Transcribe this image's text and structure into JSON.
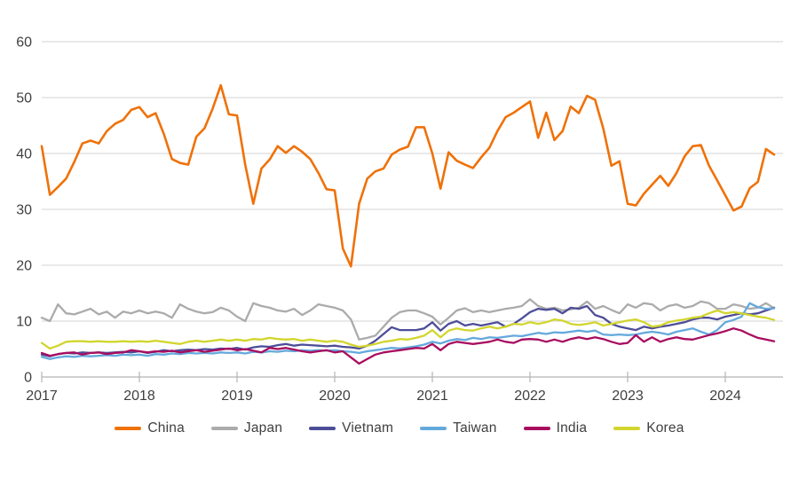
{
  "chart_data": {
    "type": "line",
    "title": "",
    "xlabel": "",
    "ylabel": "",
    "x_unit": "month",
    "x_start": "2017-01",
    "x_end": "2024-07",
    "x_tick_labels": [
      "2017",
      "2018",
      "2019",
      "2020",
      "2021",
      "2022",
      "2023",
      "2024"
    ],
    "y_ticks": [
      0,
      10,
      20,
      30,
      40,
      50,
      60
    ],
    "ylim": [
      0,
      60
    ],
    "grid": "horizontal-only",
    "legend_position": "bottom-center",
    "colors": {
      "grid_line": "#dcdcdc",
      "axis_line": "#b3b3b3",
      "tick_mark": "#b3b3b3",
      "label_text": "#3f3f3f"
    },
    "series": [
      {
        "name": "China",
        "color": "#ef7109",
        "values": [
          41.3,
          32.6,
          34.0,
          35.5,
          38.5,
          41.8,
          42.3,
          41.8,
          44.0,
          45.3,
          46.0,
          47.8,
          48.3,
          46.5,
          47.2,
          43.5,
          39.0,
          38.3,
          38.0,
          43.0,
          44.5,
          48.0,
          52.2,
          47.0,
          46.8,
          38.0,
          31.0,
          37.3,
          38.9,
          41.3,
          40.1,
          41.3,
          40.3,
          39.0,
          36.5,
          33.6,
          33.4,
          23.0,
          19.8,
          31.0,
          35.5,
          36.8,
          37.3,
          39.8,
          40.7,
          41.2,
          44.7,
          44.7,
          40.0,
          33.7,
          40.2,
          38.7,
          38.0,
          37.4,
          39.3,
          41.0,
          44.0,
          46.5,
          47.3,
          48.3,
          49.3,
          42.8,
          47.3,
          42.4,
          44.0,
          48.4,
          47.2,
          50.3,
          49.6,
          44.5,
          37.8,
          38.6,
          31.0,
          30.7,
          32.8,
          34.4,
          36.0,
          34.2,
          36.5,
          39.5,
          41.3,
          41.5,
          37.8,
          35.2,
          32.5,
          29.8,
          30.5,
          33.8,
          34.9,
          40.8,
          39.8
        ]
      },
      {
        "name": "Japan",
        "color": "#ababab",
        "values": [
          10.6,
          10.0,
          13.0,
          11.4,
          11.2,
          11.7,
          12.2,
          11.2,
          11.7,
          10.6,
          11.7,
          11.4,
          11.9,
          11.4,
          11.7,
          11.4,
          10.6,
          13.0,
          12.2,
          11.7,
          11.4,
          11.6,
          12.4,
          11.9,
          10.8,
          10.0,
          13.2,
          12.7,
          12.4,
          11.9,
          11.7,
          12.2,
          11.1,
          11.9,
          13.0,
          12.7,
          12.4,
          11.9,
          10.3,
          6.7,
          7.0,
          7.4,
          9.0,
          10.6,
          11.6,
          11.9,
          11.9,
          11.4,
          10.8,
          9.4,
          10.6,
          11.9,
          12.3,
          11.6,
          11.9,
          11.6,
          11.9,
          12.2,
          12.4,
          12.7,
          13.9,
          12.7,
          12.2,
          12.4,
          11.9,
          12.1,
          12.4,
          13.5,
          12.2,
          12.7,
          12.0,
          11.4,
          13.0,
          12.4,
          13.2,
          13.0,
          11.9,
          12.7,
          13.0,
          12.4,
          12.7,
          13.5,
          13.2,
          12.2,
          12.2,
          13.0,
          12.7,
          12.2,
          12.4,
          13.2,
          12.3
        ]
      },
      {
        "name": "Vietnam",
        "color": "#4d4d99",
        "values": [
          4.0,
          3.7,
          4.1,
          4.3,
          4.2,
          4.4,
          4.3,
          4.4,
          4.3,
          4.4,
          4.5,
          4.4,
          4.6,
          4.3,
          4.5,
          4.8,
          4.6,
          4.8,
          4.9,
          4.8,
          5.0,
          4.9,
          5.1,
          5.0,
          5.2,
          4.9,
          5.3,
          5.5,
          5.4,
          5.7,
          5.9,
          5.6,
          5.8,
          5.7,
          5.6,
          5.5,
          5.6,
          5.4,
          5.3,
          5.1,
          5.6,
          6.5,
          7.7,
          8.9,
          8.4,
          8.4,
          8.4,
          8.7,
          9.8,
          8.3,
          9.5,
          10.0,
          9.2,
          9.5,
          9.2,
          9.5,
          9.8,
          9.0,
          9.5,
          10.5,
          11.6,
          12.2,
          12.0,
          12.2,
          11.4,
          12.4,
          12.2,
          12.7,
          11.1,
          10.6,
          9.5,
          9.0,
          8.7,
          8.4,
          9.0,
          8.7,
          9.0,
          9.2,
          9.5,
          9.8,
          10.3,
          10.6,
          10.6,
          10.3,
          10.8,
          11.1,
          11.4,
          11.2,
          11.4,
          11.9,
          12.4
        ]
      },
      {
        "name": "Taiwan",
        "color": "#64a9dc",
        "values": [
          3.6,
          3.2,
          3.5,
          3.7,
          3.6,
          3.8,
          3.7,
          3.8,
          3.9,
          3.8,
          4.0,
          3.9,
          4.0,
          3.8,
          4.1,
          4.0,
          4.2,
          4.1,
          4.3,
          4.2,
          4.3,
          4.2,
          4.4,
          4.3,
          4.4,
          4.2,
          4.5,
          4.4,
          4.6,
          4.5,
          4.7,
          4.6,
          4.8,
          4.7,
          4.8,
          4.7,
          4.8,
          4.6,
          4.5,
          4.3,
          4.6,
          4.8,
          5.0,
          5.2,
          5.1,
          5.3,
          5.5,
          5.8,
          6.3,
          6.0,
          6.5,
          6.8,
          6.6,
          7.0,
          6.8,
          7.1,
          7.0,
          7.2,
          7.4,
          7.3,
          7.6,
          7.9,
          7.7,
          8.0,
          7.9,
          8.1,
          8.3,
          8.1,
          8.3,
          7.6,
          7.5,
          7.6,
          7.5,
          7.6,
          7.9,
          8.1,
          7.9,
          7.6,
          8.1,
          8.4,
          8.7,
          8.1,
          7.6,
          8.4,
          9.8,
          10.2,
          10.8,
          13.2,
          12.5,
          12.2,
          12.3
        ]
      },
      {
        "name": "India",
        "color": "#a80c5f",
        "values": [
          4.3,
          3.8,
          4.1,
          4.3,
          4.4,
          4.0,
          4.3,
          4.4,
          4.1,
          4.3,
          4.4,
          4.8,
          4.6,
          4.4,
          4.6,
          4.5,
          4.7,
          4.4,
          4.6,
          4.8,
          4.5,
          4.7,
          4.9,
          5.1,
          4.8,
          5.0,
          4.7,
          4.4,
          5.2,
          5.0,
          5.2,
          4.9,
          4.6,
          4.4,
          4.6,
          4.8,
          4.4,
          4.6,
          3.5,
          2.4,
          3.2,
          4.0,
          4.4,
          4.6,
          4.8,
          5.0,
          5.2,
          5.1,
          5.9,
          4.8,
          5.9,
          6.3,
          6.1,
          5.9,
          6.1,
          6.3,
          6.7,
          6.3,
          6.1,
          6.7,
          6.8,
          6.7,
          6.3,
          6.7,
          6.3,
          6.8,
          7.1,
          6.8,
          7.1,
          6.8,
          6.3,
          5.9,
          6.1,
          7.5,
          6.3,
          7.1,
          6.3,
          6.8,
          7.1,
          6.8,
          6.7,
          7.1,
          7.5,
          7.8,
          8.2,
          8.7,
          8.3,
          7.6,
          7.0,
          6.7,
          6.4
        ]
      },
      {
        "name": "Korea",
        "color": "#d2d52d",
        "values": [
          6.1,
          5.1,
          5.6,
          6.3,
          6.4,
          6.4,
          6.3,
          6.4,
          6.3,
          6.3,
          6.4,
          6.3,
          6.4,
          6.3,
          6.5,
          6.3,
          6.1,
          5.9,
          6.3,
          6.5,
          6.3,
          6.5,
          6.7,
          6.5,
          6.7,
          6.5,
          6.8,
          6.7,
          7.0,
          6.8,
          6.7,
          6.8,
          6.5,
          6.7,
          6.5,
          6.3,
          6.5,
          6.3,
          5.8,
          5.4,
          5.6,
          5.9,
          6.3,
          6.5,
          6.8,
          6.7,
          7.0,
          7.4,
          8.4,
          7.1,
          8.3,
          8.7,
          8.4,
          8.3,
          8.7,
          9.0,
          8.7,
          9.0,
          9.5,
          9.4,
          9.8,
          9.5,
          9.8,
          10.3,
          10.1,
          9.5,
          9.3,
          9.5,
          9.8,
          9.2,
          9.5,
          9.8,
          10.1,
          10.3,
          9.8,
          9.0,
          9.2,
          9.8,
          10.1,
          10.3,
          10.6,
          10.8,
          11.4,
          11.9,
          11.4,
          11.6,
          11.4,
          11.1,
          10.8,
          10.6,
          10.2
        ]
      }
    ]
  },
  "legend": {
    "items": [
      {
        "label": "China"
      },
      {
        "label": "Japan"
      },
      {
        "label": "Vietnam"
      },
      {
        "label": "Taiwan"
      },
      {
        "label": "India"
      },
      {
        "label": "Korea"
      }
    ]
  }
}
